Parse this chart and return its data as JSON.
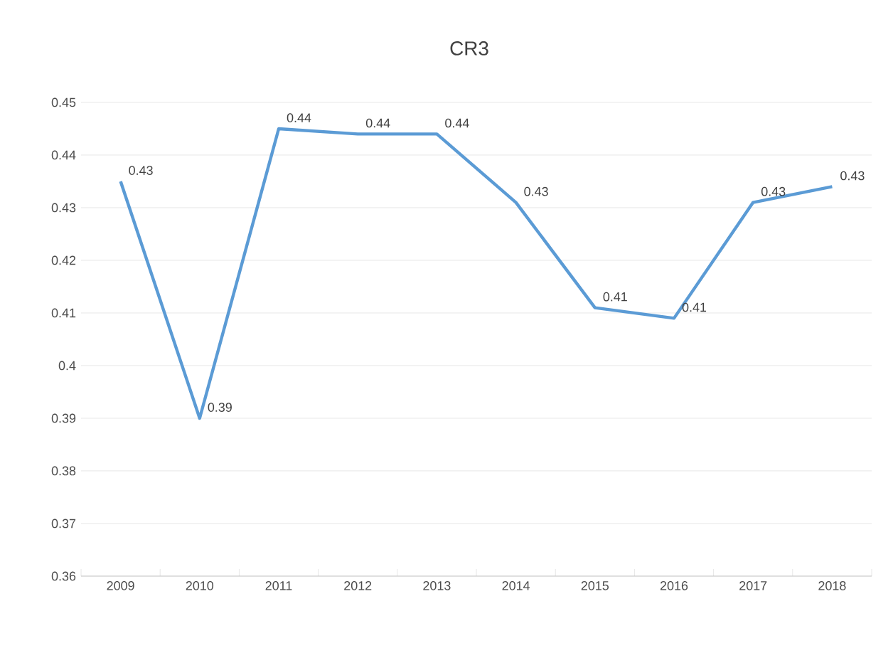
{
  "chart_data": {
    "type": "line",
    "title": "CR3",
    "categories": [
      "2009",
      "2010",
      "2011",
      "2012",
      "2013",
      "2014",
      "2015",
      "2016",
      "2017",
      "2018"
    ],
    "series": [
      {
        "color": "#5b9bd5",
        "values": [
          0.435,
          0.39,
          0.445,
          0.444,
          0.444,
          0.431,
          0.411,
          0.409,
          0.431,
          0.434
        ],
        "value_labels": [
          "0.43",
          "0.39",
          "0.44",
          "0.44",
          "0.44",
          "0.43",
          "0.41",
          "0.41",
          "0.43",
          "0.43"
        ]
      }
    ],
    "ylim": [
      0.36,
      0.45
    ],
    "yticks": [
      0.36,
      0.37,
      0.38,
      0.39,
      0.4,
      0.41,
      0.42,
      0.43,
      0.44,
      0.45
    ],
    "grid": "y",
    "marker": "none",
    "line_style": "solid"
  }
}
